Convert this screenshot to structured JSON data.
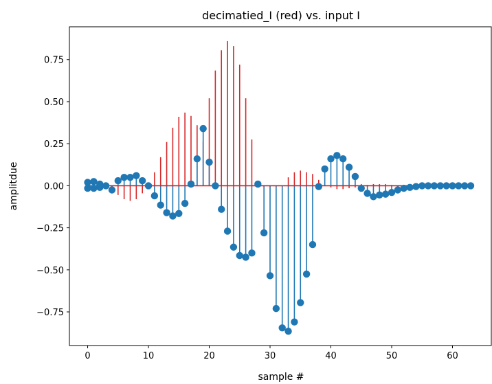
{
  "chart_data": {
    "type": "stem",
    "title": "decimatied_I (red) vs. input I",
    "xlabel": "sample #",
    "ylabel": "amplitdue",
    "xlim": [
      -3,
      66.5
    ],
    "ylim": [
      -0.95,
      0.945
    ],
    "xticks": [
      0,
      10,
      20,
      30,
      40,
      50,
      60
    ],
    "yticks": [
      -0.75,
      -0.5,
      -0.25,
      0.0,
      0.25,
      0.5,
      0.75
    ],
    "ytick_labels": [
      "−0.75",
      "−0.50",
      "−0.25",
      "0.00",
      "0.25",
      "0.50",
      "0.75"
    ],
    "grid": false,
    "series": [
      {
        "color": "#1f77b4",
        "marker": "circle",
        "baseline_color": "#d62728",
        "x": [
          0,
          0,
          1,
          1,
          2,
          2,
          3,
          4,
          5,
          6,
          7,
          8,
          9,
          10,
          11,
          12,
          13,
          14,
          15,
          16,
          17,
          18,
          19,
          20,
          21,
          22,
          23,
          24,
          25,
          26,
          27,
          28,
          29,
          30,
          31,
          32,
          33,
          34,
          35,
          36,
          37,
          38,
          39,
          40,
          41,
          42,
          43,
          44,
          45,
          46,
          47,
          48,
          49,
          50,
          51,
          52,
          53,
          54,
          55,
          56,
          57,
          58,
          59,
          60,
          61,
          62,
          63
        ],
        "y": [
          0.02,
          -0.015,
          0.025,
          -0.015,
          0.01,
          -0.01,
          0.0,
          -0.025,
          0.03,
          0.05,
          0.05,
          0.06,
          0.03,
          0.0,
          -0.06,
          -0.115,
          -0.16,
          -0.18,
          -0.165,
          -0.105,
          0.01,
          0.16,
          0.34,
          0.14,
          0.0,
          -0.14,
          -0.27,
          -0.365,
          -0.415,
          -0.425,
          -0.4,
          0.01,
          -0.28,
          -0.535,
          -0.73,
          -0.845,
          -0.865,
          -0.81,
          -0.695,
          -0.525,
          -0.35,
          -0.005,
          0.1,
          0.16,
          0.18,
          0.16,
          0.11,
          0.055,
          -0.015,
          -0.045,
          -0.065,
          -0.055,
          -0.05,
          -0.04,
          -0.025,
          -0.015,
          -0.01,
          -0.005,
          0.0,
          0.0,
          0.0,
          0.0,
          0.0,
          0.0,
          0.0,
          0.0,
          0.0
        ]
      },
      {
        "color": "#d62728",
        "marker": "none",
        "x": [
          1,
          2,
          3,
          4,
          5,
          6,
          7,
          8,
          9,
          10,
          11,
          12,
          13,
          14,
          15,
          16,
          17,
          18,
          19,
          20,
          21,
          22,
          23,
          24,
          25,
          26,
          27,
          28,
          29,
          30,
          31,
          32,
          33,
          34,
          35,
          36,
          37,
          38,
          39,
          40,
          41,
          42,
          43,
          44,
          45,
          46,
          47,
          48,
          49,
          50,
          51,
          52,
          53,
          54,
          55,
          56,
          57,
          58,
          59,
          60,
          61,
          62,
          63
        ],
        "y": [
          0.015,
          0.01,
          0.0,
          -0.03,
          -0.055,
          -0.08,
          -0.09,
          -0.08,
          -0.045,
          0.0,
          0.08,
          0.17,
          0.26,
          0.345,
          0.41,
          0.435,
          0.415,
          0.36,
          0.265,
          0.52,
          0.685,
          0.805,
          0.86,
          0.83,
          0.72,
          0.52,
          0.275,
          0.01,
          -0.005,
          -0.005,
          0.0,
          0.0,
          0.05,
          0.08,
          0.09,
          0.08,
          0.07,
          0.035,
          0.005,
          -0.01,
          -0.02,
          -0.02,
          -0.015,
          -0.01,
          0.01,
          0.005,
          0.01,
          0.01,
          0.01,
          0.005,
          0.0,
          0.0,
          0.005,
          0.01,
          0.015,
          0.015,
          0.01,
          0.005,
          0.0,
          0.0,
          0.0,
          0.0,
          0.0
        ]
      }
    ]
  }
}
